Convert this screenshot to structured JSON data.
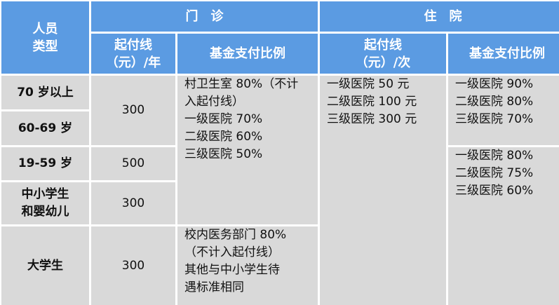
{
  "header": {
    "person_type": [
      "人员",
      "类型"
    ],
    "outpatient": "门　诊",
    "inpatient": "住　院",
    "op_threshold": [
      "起付线",
      "（元）/年"
    ],
    "op_ratio": "基金支付比例",
    "ip_threshold": [
      "起付线",
      "（元）/次"
    ],
    "ip_ratio": "基金支付比例"
  },
  "rows": [
    {
      "type": "70 岁以上"
    },
    {
      "type": "60-69 岁"
    },
    {
      "type": "19-59 岁"
    },
    {
      "type": [
        "中小学生",
        "和婴幼儿"
      ]
    },
    {
      "type": "大学生"
    }
  ],
  "op_thresholds": [
    "300",
    "500",
    "300",
    "300"
  ],
  "op_ratio_general": [
    "村卫生室 80%（不计",
    "入起付线）",
    "一级医院 70%",
    "二级医院 60%",
    "三级医院 50%"
  ],
  "op_ratio_college": [
    "校内医务部门 80%",
    "（不计入起付线）",
    "其他与中小学生待",
    "遇标准相同"
  ],
  "ip_threshold": [
    "一级医院 50 元",
    "二级医院 100 元",
    "三级医院 300 元"
  ],
  "ip_ratio_elderly": [
    "一级医院 90%",
    "二级医院 80%",
    "三级医院 70%"
  ],
  "ip_ratio_others": [
    "一级医院 80%",
    "二级医院 75%",
    "三级医院 60%"
  ],
  "colors": {
    "header_bg": "#5b9be2",
    "cell_bg": "#d9d9d9"
  }
}
